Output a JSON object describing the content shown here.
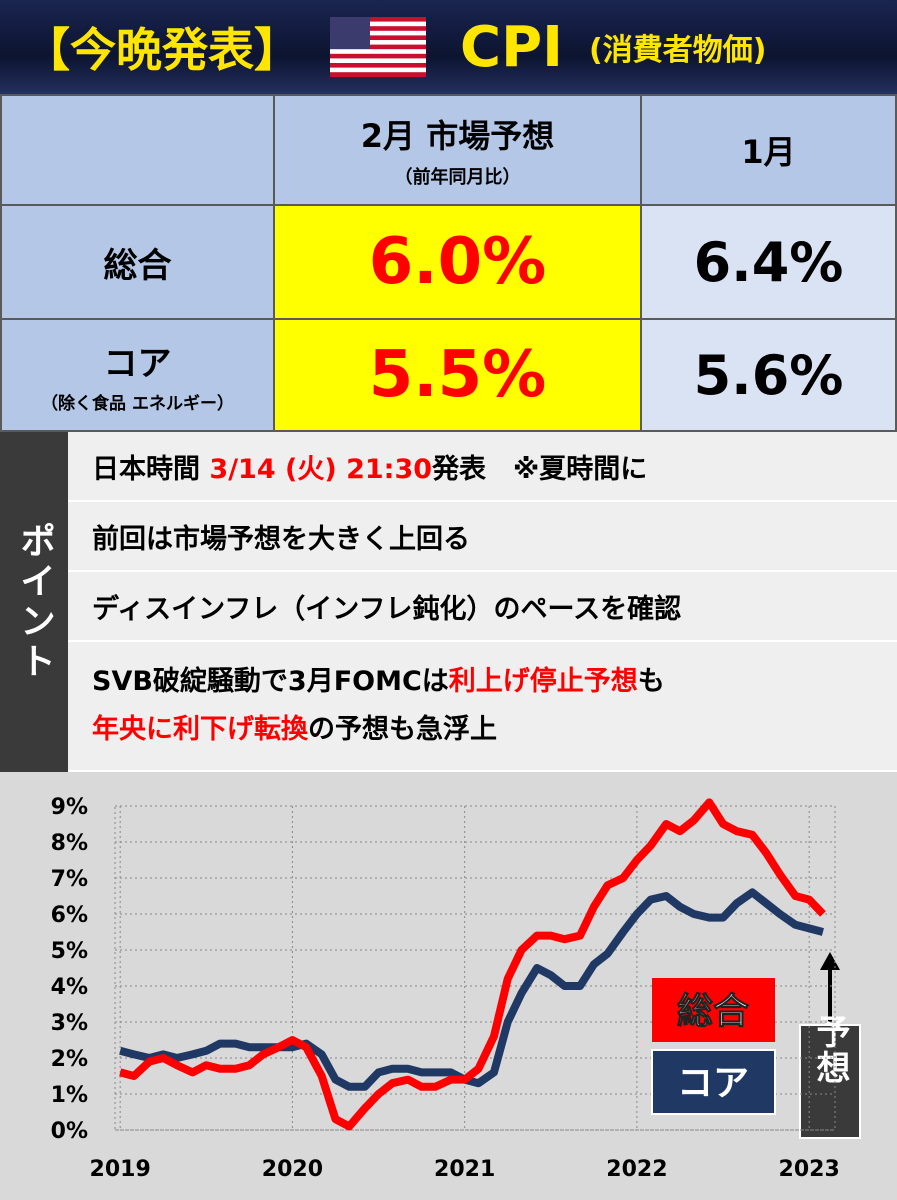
{
  "header": {
    "title": "【今晩発表】",
    "indicator": "CPI",
    "indicator_sub": "(消費者物価)"
  },
  "table": {
    "forecast_head": "2月 市場予想",
    "forecast_sub": "（前年同月比）",
    "previous_head": "1月",
    "rows": [
      {
        "label": "総合",
        "forecast": "6.0%",
        "previous": "6.4%"
      },
      {
        "label": "コア",
        "sub": "（除く食品 エネルギー）",
        "forecast": "5.5%",
        "previous": "5.6%"
      }
    ]
  },
  "points": {
    "label": "ポイント",
    "rows": [
      [
        "日本時間 ",
        "3/14 (火) 21:30",
        "発表　※夏時間に"
      ],
      [
        "前回は市場予想を大きく上回る"
      ],
      [
        "ディスインフレ（インフレ鈍化）のペースを確認"
      ],
      [
        "SVB破綻騒動で3月FOMCは",
        "利上げ停止予想",
        "も"
      ],
      [
        "年央に利下げ転換",
        "の予想も急浮上"
      ]
    ]
  },
  "chart_data": {
    "type": "line",
    "x": [
      2019.0,
      2019.08,
      2019.17,
      2019.25,
      2019.33,
      2019.42,
      2019.5,
      2019.58,
      2019.67,
      2019.75,
      2019.83,
      2019.92,
      2020.0,
      2020.08,
      2020.17,
      2020.25,
      2020.33,
      2020.42,
      2020.5,
      2020.58,
      2020.67,
      2020.75,
      2020.83,
      2020.92,
      2021.0,
      2021.08,
      2021.17,
      2021.25,
      2021.33,
      2021.42,
      2021.5,
      2021.58,
      2021.67,
      2021.75,
      2021.83,
      2021.92,
      2022.0,
      2022.08,
      2022.17,
      2022.25,
      2022.33,
      2022.42,
      2022.5,
      2022.58,
      2022.67,
      2022.75,
      2022.83,
      2022.92,
      2023.0,
      2023.08
    ],
    "series": [
      {
        "name": "総合",
        "color": "#ff0000",
        "values": [
          1.6,
          1.5,
          1.9,
          2.0,
          1.8,
          1.6,
          1.8,
          1.7,
          1.7,
          1.8,
          2.1,
          2.3,
          2.5,
          2.3,
          1.5,
          0.3,
          0.1,
          0.6,
          1.0,
          1.3,
          1.4,
          1.2,
          1.2,
          1.4,
          1.4,
          1.7,
          2.6,
          4.2,
          5.0,
          5.4,
          5.4,
          5.3,
          5.4,
          6.2,
          6.8,
          7.0,
          7.5,
          7.9,
          8.5,
          8.3,
          8.6,
          9.1,
          8.5,
          8.3,
          8.2,
          7.7,
          7.1,
          6.5,
          6.4,
          6.0
        ]
      },
      {
        "name": "コア",
        "color": "#1f3864",
        "values": [
          2.2,
          2.1,
          2.0,
          2.1,
          2.0,
          2.1,
          2.2,
          2.4,
          2.4,
          2.3,
          2.3,
          2.3,
          2.3,
          2.4,
          2.1,
          1.4,
          1.2,
          1.2,
          1.6,
          1.7,
          1.7,
          1.6,
          1.6,
          1.6,
          1.4,
          1.3,
          1.6,
          3.0,
          3.8,
          4.5,
          4.3,
          4.0,
          4.0,
          4.6,
          4.9,
          5.5,
          6.0,
          6.4,
          6.5,
          6.2,
          6.0,
          5.9,
          5.9,
          6.3,
          6.6,
          6.3,
          6.0,
          5.7,
          5.6,
          5.5
        ]
      }
    ],
    "xlim": [
      2018.97,
      2023.15
    ],
    "xticks": [
      2019,
      2020,
      2021,
      2022,
      2023
    ],
    "ylim": [
      0,
      9
    ],
    "yticks": [
      {
        "value": 0,
        "label": "0%"
      },
      {
        "value": 1,
        "label": "1%"
      },
      {
        "value": 2,
        "label": "2%"
      },
      {
        "value": 3,
        "label": "3%"
      },
      {
        "value": 4,
        "label": "4%"
      },
      {
        "value": 5,
        "label": "5%"
      },
      {
        "value": 6,
        "label": "6%"
      },
      {
        "value": 7,
        "label": "7%"
      },
      {
        "value": 8,
        "label": "8%"
      },
      {
        "value": 9,
        "label": "9%"
      }
    ],
    "grid": true,
    "annotation": "予想"
  }
}
